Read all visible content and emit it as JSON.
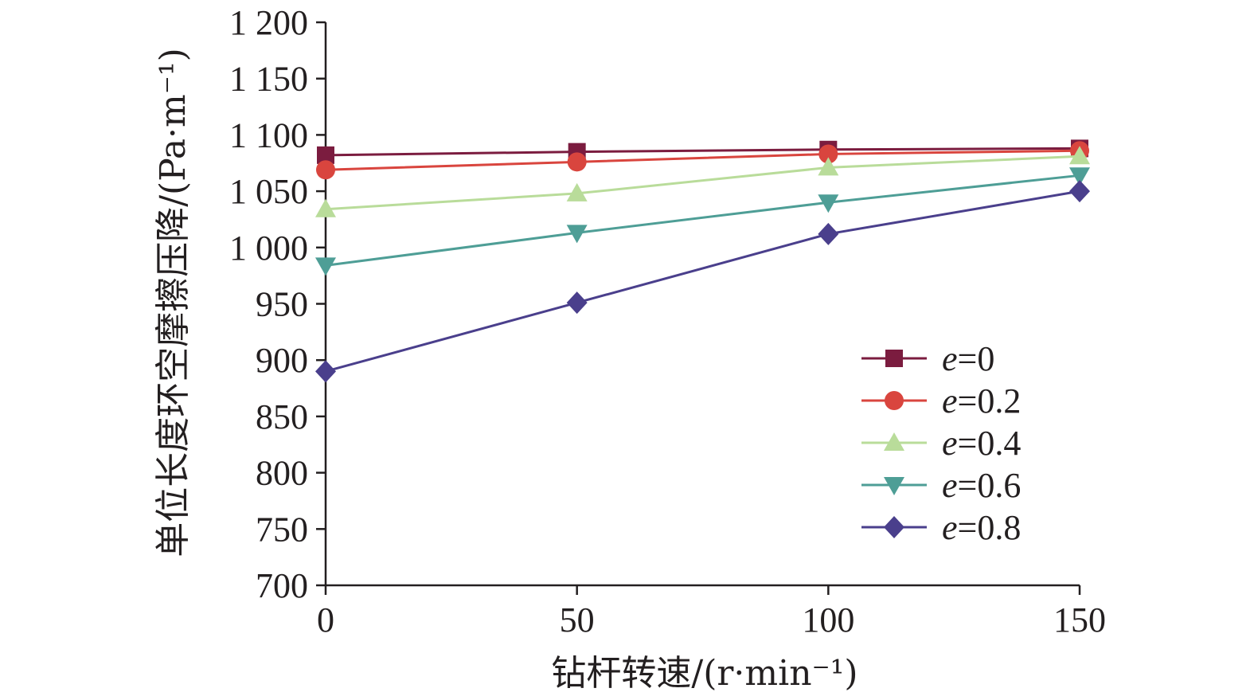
{
  "chart_data": {
    "type": "line",
    "title": "",
    "xlabel": "钻杆转速/(r·min⁻¹)",
    "ylabel": "单位长度环空摩擦压降/(Pa·m⁻¹)",
    "x": [
      0,
      50,
      100,
      150
    ],
    "xlim": [
      0,
      150
    ],
    "ylim": [
      700,
      1200
    ],
    "x_ticks": [
      0,
      50,
      100,
      150
    ],
    "x_tick_labels": [
      "0",
      "50",
      "100",
      "150"
    ],
    "y_ticks": [
      700,
      750,
      800,
      850,
      900,
      950,
      1000,
      1050,
      1100,
      1150,
      1200
    ],
    "y_tick_labels": [
      "700",
      "750",
      "800",
      "850",
      "900",
      "950",
      "1 000",
      "1 050",
      "1 100",
      "1 150",
      "1 200"
    ],
    "grid": false,
    "legend_position": "bottom-right",
    "series": [
      {
        "name": "e=0",
        "var": "e",
        "rest": "=0",
        "marker": "square",
        "color": "#7b1c3f",
        "values": [
          1082,
          1085,
          1087,
          1088
        ]
      },
      {
        "name": "e=0.2",
        "var": "e",
        "rest": "=0.2",
        "marker": "circle",
        "color": "#d9453e",
        "values": [
          1069,
          1076,
          1083,
          1086
        ]
      },
      {
        "name": "e=0.4",
        "var": "e",
        "rest": "=0.4",
        "marker": "triangle-up",
        "color": "#b9dc9a",
        "values": [
          1034,
          1048,
          1071,
          1081
        ]
      },
      {
        "name": "e=0.6",
        "var": "e",
        "rest": "=0.6",
        "marker": "triangle-down",
        "color": "#4e9e96",
        "values": [
          984,
          1013,
          1040,
          1064
        ]
      },
      {
        "name": "e=0.8",
        "var": "e",
        "rest": "=0.8",
        "marker": "diamond",
        "color": "#4a3f8c",
        "values": [
          890,
          951,
          1012,
          1050
        ]
      }
    ]
  }
}
